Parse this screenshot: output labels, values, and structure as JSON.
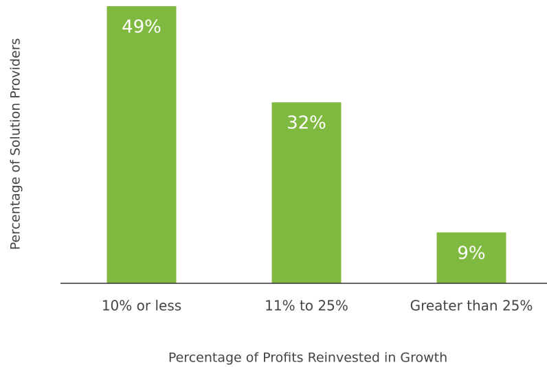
{
  "chart_data": {
    "type": "bar",
    "x_label": "Percentage of Profits Reinvested in Growth",
    "y_label": "Percentage of Solution Providers",
    "categories": [
      "10% or less",
      "11% to 25%",
      "Greater than 25%"
    ],
    "values": [
      49,
      32,
      9
    ],
    "value_labels": [
      "49%",
      "32%",
      "9%"
    ],
    "color": "#80b940"
  }
}
